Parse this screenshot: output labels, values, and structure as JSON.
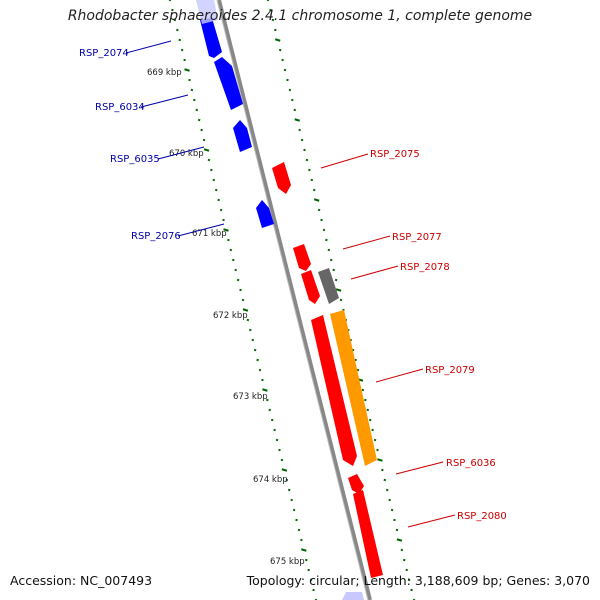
{
  "title": "Rhodobacter sphaeroides 2.4.1 chromosome 1, complete genome",
  "accession": "Accession: NC_007493",
  "topology": "Topology: circular; Length: 3,188,609 bp; Genes: 3,070",
  "colors": {
    "forward_gene": "#ff0000",
    "reverse_gene": "#0000ff",
    "other_feature": "#666666",
    "highlight_feature": "#ff9900",
    "backbone": "#888888",
    "ticks": "#006600",
    "forward_label": "#cc0000",
    "reverse_label": "#0000aa"
  },
  "position_labels": [
    "669 kbp",
    "670 kbp",
    "671 kbp",
    "672 kbp",
    "673 kbp",
    "674 kbp",
    "675 kbp"
  ],
  "reverse_genes": [
    "RSP_2074",
    "RSP_6034",
    "RSP_6035",
    "RSP_2076"
  ],
  "forward_genes": [
    "RSP_2075",
    "RSP_2077",
    "RSP_2078",
    "RSP_2079",
    "RSP_6036",
    "RSP_2080"
  ]
}
